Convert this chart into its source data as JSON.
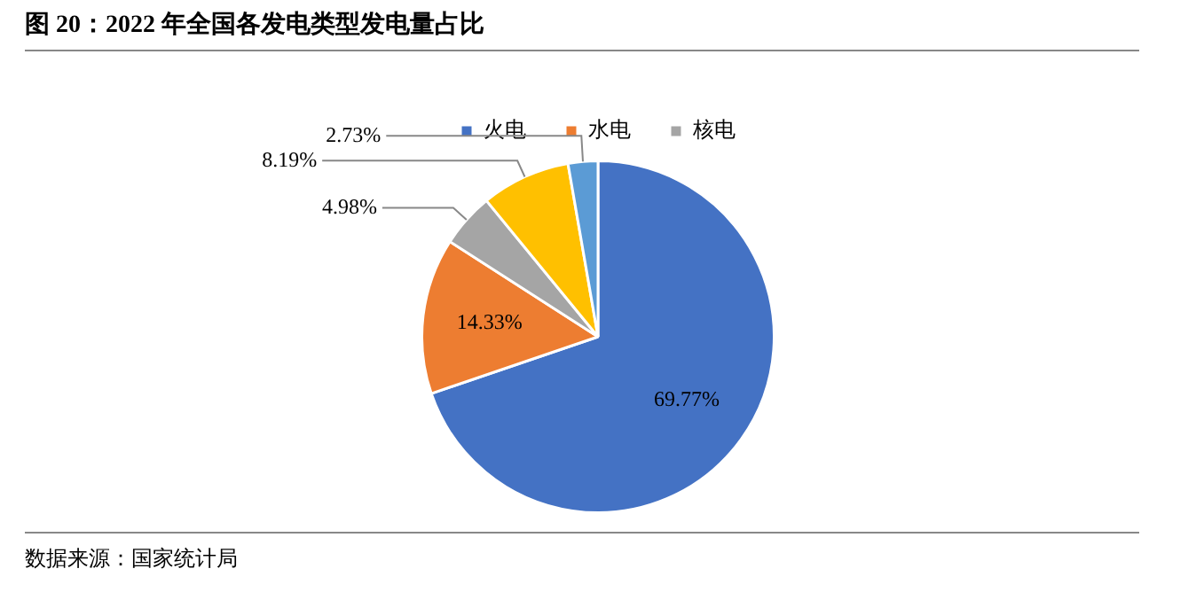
{
  "chart_data": {
    "type": "pie",
    "title": "图 20：2022 年全国各发电类型发电量占比",
    "categories": [
      "火电",
      "水电",
      "核电",
      null,
      null
    ],
    "values": [
      69.77,
      14.33,
      4.98,
      8.19,
      2.73
    ],
    "value_labels": [
      "69.77%",
      "14.33%",
      "4.98%",
      "8.19%",
      "2.73%"
    ],
    "colors": [
      "#4472c4",
      "#ed7d31",
      "#a5a5a5",
      "#ffc000",
      "#5b9bd5"
    ],
    "legend": "top",
    "annotations": [
      "数据来源：国家统计局"
    ]
  }
}
